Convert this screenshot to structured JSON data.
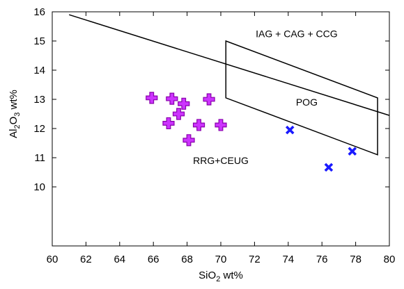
{
  "chart_data": {
    "type": "scatter",
    "title": "",
    "xlabel": "SiO2 wt%",
    "xlabel_parts": {
      "base": "SiO",
      "sub": "2",
      "rest": " wt%"
    },
    "ylabel": "Al2O3 wt%",
    "ylabel_parts": {
      "a": "Al",
      "sub1": "2",
      "b": "O",
      "sub2": "3",
      "rest": " wt%"
    },
    "xlim": [
      60,
      80
    ],
    "ylim": [
      6,
      16
    ],
    "x_ticks": [
      "60",
      "62",
      "64",
      "66",
      "68",
      "70",
      "72",
      "74",
      "76",
      "78",
      "80"
    ],
    "y_ticks": [
      "10",
      "11",
      "12",
      "13",
      "14",
      "15",
      "16"
    ],
    "grid": false,
    "series": [
      {
        "marker": "plus",
        "color": "#cc33ff",
        "stroke": "#8800aa",
        "points": [
          {
            "x": 65.9,
            "y": 13.05
          },
          {
            "x": 67.1,
            "y": 13.02
          },
          {
            "x": 69.3,
            "y": 13.0
          },
          {
            "x": 67.8,
            "y": 12.85
          },
          {
            "x": 67.5,
            "y": 12.5
          },
          {
            "x": 66.9,
            "y": 12.18
          },
          {
            "x": 68.7,
            "y": 12.12
          },
          {
            "x": 70.0,
            "y": 12.12
          },
          {
            "x": 68.1,
            "y": 11.6
          }
        ]
      },
      {
        "marker": "cross",
        "color": "#1a1aff",
        "points": [
          {
            "x": 74.1,
            "y": 11.95
          },
          {
            "x": 77.8,
            "y": 11.22
          },
          {
            "x": 76.4,
            "y": 10.67
          }
        ]
      }
    ],
    "boundary_line": [
      {
        "x": 61.0,
        "y": 15.9
      },
      {
        "x": 80.0,
        "y": 12.45
      }
    ],
    "pog_field": [
      {
        "x": 70.3,
        "y": 15.0
      },
      {
        "x": 79.3,
        "y": 13.05
      },
      {
        "x": 79.3,
        "y": 11.1
      },
      {
        "x": 70.3,
        "y": 13.05
      }
    ],
    "annotations": [
      {
        "text": "IAG + CAG + CCG",
        "x": 74.5,
        "y": 15.25
      },
      {
        "text": "POG",
        "x": 75.1,
        "y": 12.9
      },
      {
        "text": "RRG+CEUG",
        "x": 70.0,
        "y": 10.9
      }
    ]
  }
}
